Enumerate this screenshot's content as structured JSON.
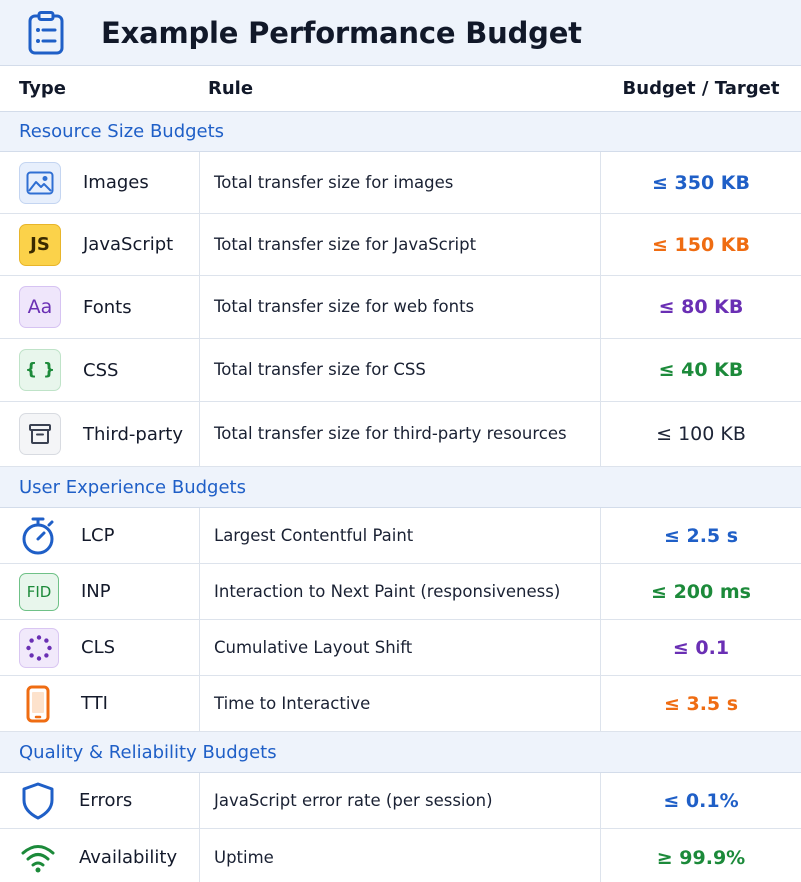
{
  "title": "Example Performance Budget",
  "columns": {
    "type": "Type",
    "rule": "Rule",
    "budget": "Budget / Target"
  },
  "sections": {
    "resource": {
      "title": "Resource Size Budgets",
      "rows": [
        {
          "icon": "image-icon",
          "type": "Images",
          "rule": "Total transfer size for images",
          "budget": "≤ 350 KB",
          "color": "#1f5fc7"
        },
        {
          "icon": "javascript-icon",
          "icon_text": "JS",
          "type": "JavaScript",
          "rule": "Total transfer size for JavaScript",
          "budget": "≤ 150 KB",
          "color": "#ef6c12"
        },
        {
          "icon": "font-icon",
          "icon_text": "Aa",
          "type": "Fonts",
          "rule": "Total transfer size for web fonts",
          "budget": "≤ 80 KB",
          "color": "#6a2fb4"
        },
        {
          "icon": "css-braces-icon",
          "icon_text": "{ }",
          "type": "CSS",
          "rule": "Total transfer size for CSS",
          "budget": "≤ 40 KB",
          "color": "#1c8a3a"
        },
        {
          "icon": "package-icon",
          "type": "Third-party",
          "rule": "Total transfer size for third-party resources",
          "budget": "≤ 100 KB",
          "color": "#1d2436"
        }
      ]
    },
    "ux": {
      "title": "User Experience Budgets",
      "rows": [
        {
          "icon": "stopwatch-icon",
          "type": "LCP",
          "rule": "Largest Contentful Paint",
          "budget": "≤ 2.5 s",
          "color": "#1f5fc7"
        },
        {
          "icon": "fid-icon",
          "icon_text": "FID",
          "type": "INP",
          "rule": "Interaction to Next Paint (responsiveness)",
          "budget": "≤ 200 ms",
          "color": "#1c8a3a"
        },
        {
          "icon": "dotted-circle-icon",
          "type": "CLS",
          "rule": "Cumulative Layout Shift",
          "budget": "≤ 0.1",
          "color": "#6a2fb4"
        },
        {
          "icon": "mobile-phone-icon",
          "type": "TTI",
          "rule": "Time to Interactive",
          "budget": "≤ 3.5 s",
          "color": "#ef6c12"
        }
      ]
    },
    "quality": {
      "title": "Quality & Reliability Budgets",
      "rows": [
        {
          "icon": "shield-icon",
          "type": "Errors",
          "rule": "JavaScript error rate (per session)",
          "budget": "≤ 0.1%",
          "color": "#1f5fc7"
        },
        {
          "icon": "wifi-icon",
          "type": "Availability",
          "rule": "Uptime",
          "budget": "≥ 99.9%",
          "color": "#1c8a3a"
        }
      ]
    }
  }
}
